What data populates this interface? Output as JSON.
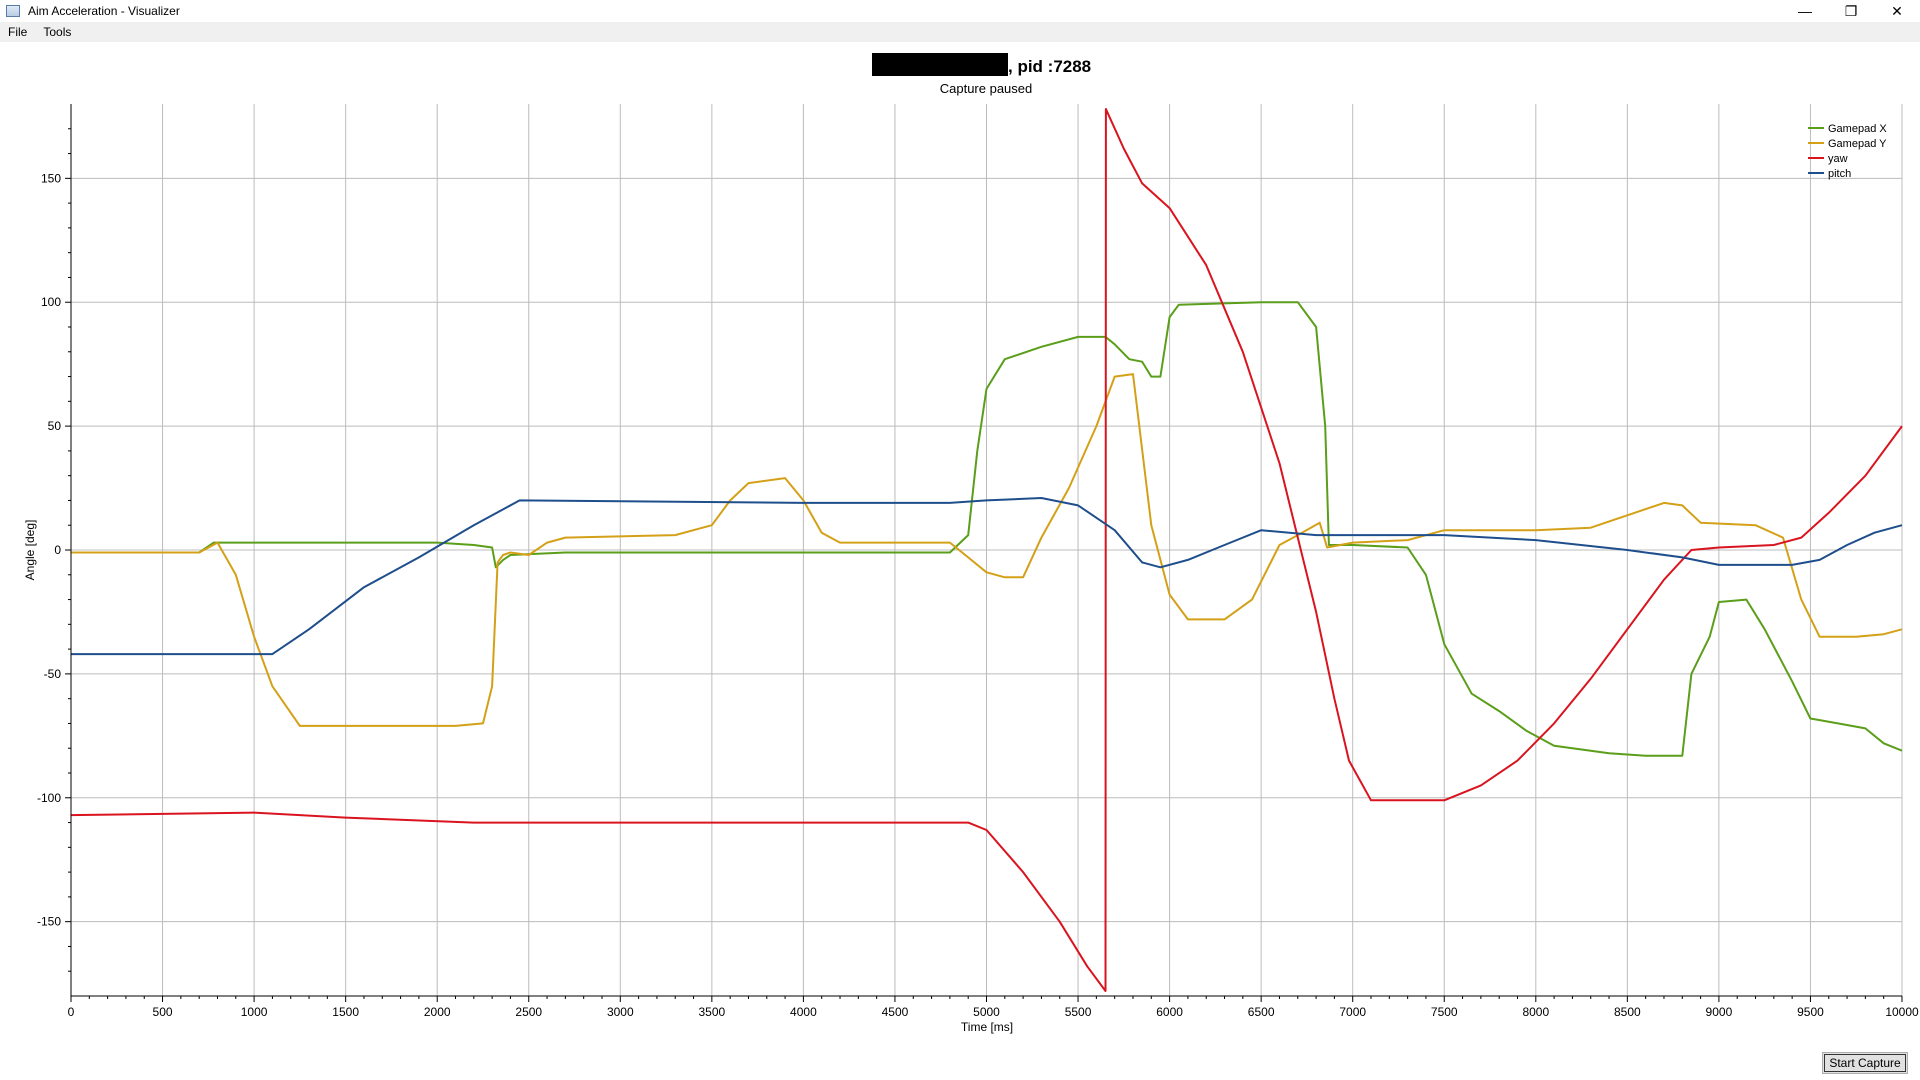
{
  "window": {
    "title": "Aim Acceleration - Visualizer",
    "minimize_glyph": "—",
    "restore_glyph": "❐",
    "close_glyph": "✕"
  },
  "menu": {
    "items": [
      "File",
      "Tools"
    ]
  },
  "bottom": {
    "start_capture_label": "Start Capture"
  },
  "chart_data": {
    "type": "line",
    "title": ", pid :7288",
    "subtitle": "Capture paused",
    "xlabel": "Time [ms]",
    "ylabel": "Angle [deg]",
    "xlim": [
      0,
      10000
    ],
    "ylim": [
      -180,
      180
    ],
    "xticks": [
      0,
      500,
      1000,
      1500,
      2000,
      2500,
      3000,
      3500,
      4000,
      4500,
      5000,
      5500,
      6000,
      6500,
      7000,
      7500,
      8000,
      8500,
      9000,
      9500,
      10000
    ],
    "yticks": [
      -150,
      -100,
      -50,
      0,
      50,
      100,
      150
    ],
    "grid": true,
    "legend_position": "top-right",
    "series": [
      {
        "name": "Gamepad X",
        "color": "#5a9e1a",
        "points": [
          [
            0,
            -1
          ],
          [
            700,
            -1
          ],
          [
            780,
            3
          ],
          [
            2000,
            3
          ],
          [
            2200,
            2
          ],
          [
            2300,
            1
          ],
          [
            2320,
            -7
          ],
          [
            2360,
            -4
          ],
          [
            2400,
            -2
          ],
          [
            2700,
            -1
          ],
          [
            4800,
            -1
          ],
          [
            4900,
            6
          ],
          [
            4950,
            40
          ],
          [
            5000,
            65
          ],
          [
            5100,
            77
          ],
          [
            5300,
            82
          ],
          [
            5500,
            86
          ],
          [
            5650,
            86
          ],
          [
            5700,
            83
          ],
          [
            5780,
            77
          ],
          [
            5850,
            76
          ],
          [
            5900,
            70
          ],
          [
            5950,
            70
          ],
          [
            6000,
            94
          ],
          [
            6050,
            99
          ],
          [
            6500,
            100
          ],
          [
            6700,
            100
          ],
          [
            6800,
            90
          ],
          [
            6850,
            50
          ],
          [
            6870,
            2
          ],
          [
            7000,
            2
          ],
          [
            7300,
            1
          ],
          [
            7400,
            -10
          ],
          [
            7500,
            -38
          ],
          [
            7650,
            -58
          ],
          [
            7800,
            -65
          ],
          [
            7950,
            -73
          ],
          [
            8100,
            -79
          ],
          [
            8400,
            -82
          ],
          [
            8600,
            -83
          ],
          [
            8800,
            -83
          ],
          [
            8850,
            -50
          ],
          [
            8950,
            -35
          ],
          [
            9000,
            -21
          ],
          [
            9150,
            -20
          ],
          [
            9250,
            -32
          ],
          [
            9400,
            -53
          ],
          [
            9500,
            -68
          ],
          [
            9650,
            -70
          ],
          [
            9800,
            -72
          ],
          [
            9900,
            -78
          ],
          [
            10000,
            -81
          ]
        ]
      },
      {
        "name": "Gamepad Y",
        "color": "#d4a017",
        "points": [
          [
            0,
            -1
          ],
          [
            700,
            -1
          ],
          [
            800,
            3
          ],
          [
            900,
            -10
          ],
          [
            1000,
            -35
          ],
          [
            1100,
            -55
          ],
          [
            1250,
            -71
          ],
          [
            1600,
            -71
          ],
          [
            2100,
            -71
          ],
          [
            2250,
            -70
          ],
          [
            2300,
            -55
          ],
          [
            2330,
            -5
          ],
          [
            2360,
            -2
          ],
          [
            2400,
            -1
          ],
          [
            2500,
            -2
          ],
          [
            2600,
            3
          ],
          [
            2700,
            5
          ],
          [
            3300,
            6
          ],
          [
            3500,
            10
          ],
          [
            3600,
            20
          ],
          [
            3700,
            27
          ],
          [
            3900,
            29
          ],
          [
            4000,
            20
          ],
          [
            4100,
            7
          ],
          [
            4200,
            3
          ],
          [
            4800,
            3
          ],
          [
            4900,
            -3
          ],
          [
            5000,
            -9
          ],
          [
            5100,
            -11
          ],
          [
            5200,
            -11
          ],
          [
            5300,
            5
          ],
          [
            5450,
            25
          ],
          [
            5600,
            50
          ],
          [
            5700,
            70
          ],
          [
            5800,
            71
          ],
          [
            5900,
            10
          ],
          [
            6000,
            -18
          ],
          [
            6100,
            -28
          ],
          [
            6300,
            -28
          ],
          [
            6450,
            -20
          ],
          [
            6600,
            2
          ],
          [
            6700,
            6
          ],
          [
            6820,
            11
          ],
          [
            6860,
            1
          ],
          [
            7000,
            3
          ],
          [
            7300,
            4
          ],
          [
            7500,
            8
          ],
          [
            8000,
            8
          ],
          [
            8300,
            9
          ],
          [
            8500,
            14
          ],
          [
            8700,
            19
          ],
          [
            8800,
            18
          ],
          [
            8900,
            11
          ],
          [
            9200,
            10
          ],
          [
            9350,
            5
          ],
          [
            9450,
            -20
          ],
          [
            9550,
            -35
          ],
          [
            9750,
            -35
          ],
          [
            9900,
            -34
          ],
          [
            10000,
            -32
          ]
        ]
      },
      {
        "name": "yaw",
        "color": "#d9141e",
        "points": [
          [
            0,
            -107
          ],
          [
            1000,
            -106
          ],
          [
            1500,
            -108
          ],
          [
            2200,
            -110
          ],
          [
            2600,
            -110
          ],
          [
            4000,
            -110
          ],
          [
            4900,
            -110
          ],
          [
            5000,
            -113
          ],
          [
            5200,
            -130
          ],
          [
            5400,
            -150
          ],
          [
            5550,
            -168
          ],
          [
            5650,
            -178
          ],
          [
            5652,
            178
          ],
          [
            5750,
            162
          ],
          [
            5850,
            148
          ],
          [
            6000,
            138
          ],
          [
            6200,
            115
          ],
          [
            6400,
            80
          ],
          [
            6600,
            35
          ],
          [
            6800,
            -25
          ],
          [
            6900,
            -60
          ],
          [
            6980,
            -85
          ],
          [
            7100,
            -101
          ],
          [
            7500,
            -101
          ],
          [
            7700,
            -95
          ],
          [
            7900,
            -85
          ],
          [
            8100,
            -70
          ],
          [
            8300,
            -52
          ],
          [
            8500,
            -32
          ],
          [
            8700,
            -12
          ],
          [
            8850,
            0
          ],
          [
            9000,
            1
          ],
          [
            9300,
            2
          ],
          [
            9450,
            5
          ],
          [
            9600,
            15
          ],
          [
            9800,
            30
          ],
          [
            10000,
            50
          ]
        ]
      },
      {
        "name": "pitch",
        "color": "#1f4e8c",
        "points": [
          [
            0,
            -42
          ],
          [
            60,
            -42
          ],
          [
            1100,
            -42
          ],
          [
            1300,
            -32
          ],
          [
            1600,
            -15
          ],
          [
            1900,
            -3
          ],
          [
            2200,
            10
          ],
          [
            2450,
            20
          ],
          [
            4000,
            19
          ],
          [
            4800,
            19
          ],
          [
            5000,
            20
          ],
          [
            5300,
            21
          ],
          [
            5500,
            18
          ],
          [
            5700,
            8
          ],
          [
            5850,
            -5
          ],
          [
            5950,
            -7
          ],
          [
            6100,
            -4
          ],
          [
            6300,
            2
          ],
          [
            6500,
            8
          ],
          [
            6800,
            6
          ],
          [
            7500,
            6
          ],
          [
            8000,
            4
          ],
          [
            8500,
            0
          ],
          [
            8800,
            -3
          ],
          [
            9000,
            -6
          ],
          [
            9400,
            -6
          ],
          [
            9550,
            -4
          ],
          [
            9700,
            2
          ],
          [
            9850,
            7
          ],
          [
            10000,
            10
          ]
        ]
      }
    ]
  }
}
